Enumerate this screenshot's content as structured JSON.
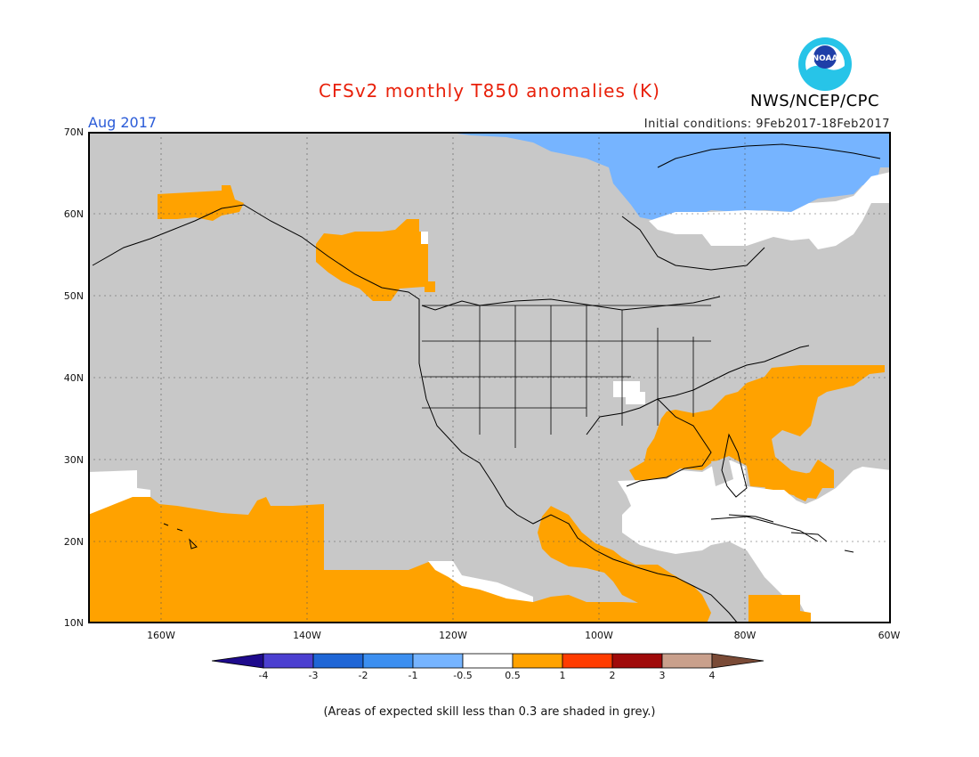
{
  "header": {
    "title": "CFSv2 monthly T850 anomalies (K)",
    "month": "Aug 2017",
    "initial_conditions": "Initial conditions: 9Feb2017-18Feb2017",
    "organization": "NWS/NCEP/CPC",
    "logo_text": "NOAA"
  },
  "map": {
    "latitude_labels": [
      "70N",
      "60N",
      "50N",
      "40N",
      "30N",
      "20N",
      "10N"
    ],
    "longitude_labels": [
      "160W",
      "140W",
      "120W",
      "100W",
      "80W",
      "60W"
    ],
    "colors": {
      "grey_low_skill": "#c8c8c8",
      "anomaly_0.5_1": "#ffa200",
      "anomaly_-1_-0.5": "#76b4ff",
      "neutral": "#ffffff"
    }
  },
  "legend": {
    "labels": [
      "-4",
      "-3",
      "-2",
      "-1",
      "-0.5",
      "0.5",
      "1",
      "2",
      "3",
      "4"
    ],
    "colors": [
      "#1e0a8c",
      "#4b3fd0",
      "#1f66d6",
      "#3c8ff0",
      "#76b4ff",
      "#ffffff",
      "#ffa200",
      "#ff3c00",
      "#a00a0a",
      "#c9a08c",
      "#7a4a36"
    ]
  },
  "footnote": "(Areas of expected skill less than 0.3 are shaded in grey.)"
}
